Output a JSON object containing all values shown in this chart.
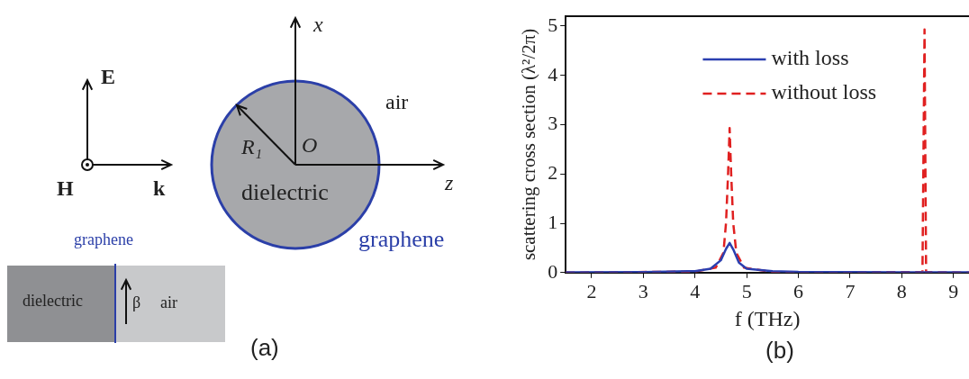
{
  "chart_data": [
    {
      "type": "other",
      "annotations": [
        "E",
        "H",
        "k",
        "x",
        "z",
        "O",
        "R₁",
        "air",
        "dielectric",
        "graphene",
        "graphene",
        "dielectric",
        "β",
        "air",
        "(a)"
      ]
    },
    {
      "type": "line",
      "xlabel": "f (THz)",
      "ylabel": "scattering cross section (λ²/2π)",
      "xlim": [
        1.5,
        9.3
      ],
      "xticks": [
        2,
        3,
        4,
        5,
        6,
        7,
        8,
        9
      ],
      "ylim": [
        0,
        5.2
      ],
      "yticks": [
        0,
        1,
        2,
        3,
        4,
        5
      ],
      "legend": "top",
      "grid": false,
      "annotations": [
        "(b)"
      ],
      "series": [
        {
          "name": "with loss",
          "color": "#2b3fb0",
          "line_style": "solid",
          "x": [
            1.5,
            3,
            4,
            4.3,
            4.5,
            4.6,
            4.67,
            4.75,
            4.85,
            5,
            5.5,
            6,
            8,
            9.3
          ],
          "values": [
            0.005,
            0.01,
            0.03,
            0.08,
            0.25,
            0.48,
            0.6,
            0.45,
            0.2,
            0.08,
            0.03,
            0.015,
            0.005,
            0.005
          ]
        },
        {
          "name": "without loss",
          "color": "#e02020",
          "line_style": "dashed",
          "x": [
            1.5,
            4,
            4.4,
            4.55,
            4.6,
            4.64,
            4.67,
            4.7,
            4.74,
            4.8,
            4.95,
            5.5,
            8.4,
            8.44,
            8.47,
            9.3
          ],
          "values": [
            0,
            0.02,
            0.1,
            0.4,
            1,
            2,
            2.93,
            2,
            1,
            0.4,
            0.1,
            0.01,
            0.01,
            4.93,
            0.01,
            0
          ]
        }
      ]
    }
  ]
}
